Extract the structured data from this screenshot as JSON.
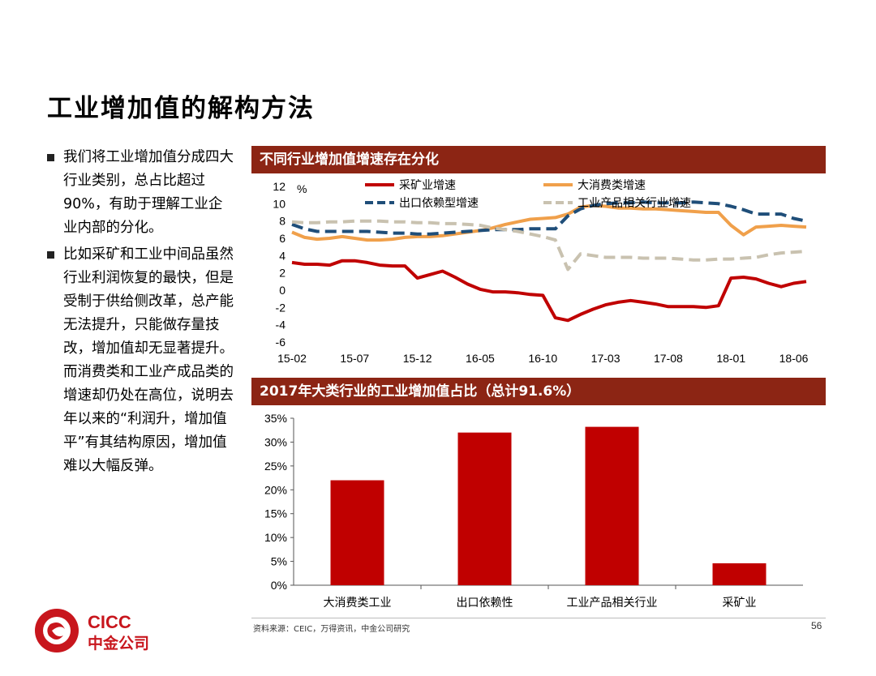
{
  "page": {
    "title": "工业增加值的解构方法",
    "bullets": [
      "我们将工业增加值分成四大行业类别，总占比超过90%，有助于理解工业企业内部的分化。",
      "比如采矿和工业中间品虽然行业利润恢复的最快，但是受制于供给侧改革，总产能无法提升，只能做存量技改，增加值却无显著提升。而消费类和工业产成品类的增速却仍处在高位，说明去年以来的“利润升，增加值平”有其结构原因，增加值难以大幅反弹。"
    ],
    "source": "资料来源：CEIC，万得资讯，中金公司研究",
    "page_number": "56",
    "logo": {
      "text_top": "CICC",
      "text_bottom": "中金公司",
      "color": "#c8161d"
    }
  },
  "chart_data": [
    {
      "type": "line",
      "title": "不同行业增加值增速存在分化",
      "ylabel": "%",
      "ylim": [
        -6,
        12
      ],
      "yticks": [
        12,
        10,
        8,
        6,
        4,
        2,
        0,
        -2,
        -4,
        -6
      ],
      "x_tick_labels": [
        "15-02",
        "15-07",
        "15-12",
        "16-05",
        "16-10",
        "17-03",
        "17-08",
        "18-01",
        "18-06"
      ],
      "x": [
        "15-02",
        "15-03",
        "15-04",
        "15-05",
        "15-06",
        "15-07",
        "15-08",
        "15-09",
        "15-10",
        "15-11",
        "15-12",
        "16-01",
        "16-02",
        "16-03",
        "16-04",
        "16-05",
        "16-06",
        "16-07",
        "16-08",
        "16-09",
        "16-10",
        "16-11",
        "16-12",
        "17-01",
        "17-02",
        "17-03",
        "17-04",
        "17-05",
        "17-06",
        "17-07",
        "17-08",
        "17-09",
        "17-10",
        "17-11",
        "17-12",
        "18-01",
        "18-02",
        "18-03",
        "18-04",
        "18-05",
        "18-06",
        "18-07"
      ],
      "series": [
        {
          "name": "采矿业增速",
          "color": "#c00000",
          "dash": "solid",
          "values": [
            3.2,
            3.0,
            3.0,
            2.9,
            3.4,
            3.4,
            3.2,
            2.9,
            2.8,
            2.8,
            1.4,
            1.8,
            2.2,
            1.5,
            0.7,
            0.1,
            -0.2,
            -0.2,
            -0.3,
            -0.5,
            -0.6,
            -3.2,
            -3.5,
            -2.8,
            -2.2,
            -1.7,
            -1.4,
            -1.2,
            -1.4,
            -1.6,
            -1.9,
            -1.9,
            -1.9,
            -2.0,
            -1.8,
            1.4,
            1.5,
            1.3,
            0.8,
            0.4,
            0.8,
            1.0
          ]
        },
        {
          "name": "大消费类增速",
          "color": "#f0a04b",
          "dash": "solid",
          "values": [
            6.7,
            6.1,
            5.9,
            6.0,
            6.2,
            6.0,
            5.8,
            5.8,
            5.9,
            6.1,
            6.2,
            6.2,
            6.3,
            6.5,
            6.7,
            6.9,
            7.2,
            7.6,
            7.9,
            8.2,
            8.3,
            8.4,
            8.8,
            9.6,
            9.8,
            9.7,
            9.5,
            9.5,
            9.4,
            9.4,
            9.3,
            9.2,
            9.1,
            9.0,
            9.0,
            7.5,
            6.4,
            7.3,
            7.4,
            7.5,
            7.4,
            7.3
          ]
        },
        {
          "name": "出口依赖型增速",
          "color": "#1f4e79",
          "dash": "dashed",
          "values": [
            7.6,
            7.1,
            6.8,
            6.8,
            6.8,
            6.8,
            6.8,
            6.7,
            6.6,
            6.6,
            6.5,
            6.5,
            6.6,
            6.7,
            6.8,
            6.9,
            7.0,
            7.0,
            7.0,
            7.1,
            7.1,
            7.1,
            8.6,
            9.4,
            9.8,
            10.0,
            10.1,
            10.1,
            10.2,
            10.1,
            10.1,
            10.1,
            10.2,
            10.1,
            10.0,
            9.7,
            9.3,
            8.8,
            8.8,
            8.8,
            8.3,
            8.0
          ]
        },
        {
          "name": "工业产品相关行业增速",
          "color": "#c9c2b0",
          "dash": "dashed",
          "values": [
            7.9,
            7.8,
            7.8,
            7.9,
            7.9,
            8.0,
            8.0,
            8.0,
            7.9,
            7.9,
            7.8,
            7.8,
            7.7,
            7.7,
            7.6,
            7.5,
            7.2,
            7.0,
            6.8,
            6.5,
            6.2,
            5.8,
            2.4,
            4.2,
            4.0,
            3.8,
            3.8,
            3.8,
            3.7,
            3.7,
            3.7,
            3.6,
            3.5,
            3.5,
            3.6,
            3.6,
            3.7,
            3.8,
            4.1,
            4.3,
            4.4,
            4.5
          ]
        }
      ]
    },
    {
      "type": "bar",
      "title": "2017年大类行业的工业增加值占比（总计91.6%）",
      "categories": [
        "大消费类工业",
        "出口依赖性",
        "工业产品相关行业",
        "采矿业"
      ],
      "values": [
        22,
        32,
        33.2,
        4.6
      ],
      "ylim": [
        0,
        35
      ],
      "yticks": [
        "35%",
        "30%",
        "25%",
        "20%",
        "15%",
        "10%",
        "5%",
        "0%"
      ],
      "ytick_values": [
        35,
        30,
        25,
        20,
        15,
        10,
        5,
        0
      ],
      "color": "#c00000"
    }
  ]
}
